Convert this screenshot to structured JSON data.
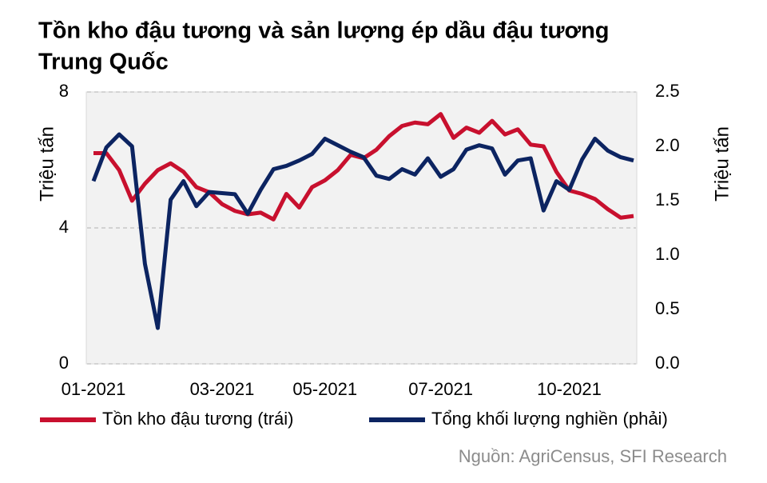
{
  "chart_data": {
    "type": "line",
    "title": "Tồn kho đậu tương và sản lượng ép dầu đậu tương",
    "subtitle": "Trung Quốc",
    "ylabel": "Triệu tấn",
    "y2label": "Triệu tấn",
    "source": "Nguồn:  AgriCensus,  SFI Research",
    "categories": [
      "01-2021",
      null,
      null,
      null,
      null,
      null,
      null,
      null,
      null,
      null,
      "03-2021",
      null,
      null,
      null,
      null,
      null,
      null,
      null,
      "05-2021",
      null,
      null,
      null,
      null,
      null,
      null,
      null,
      null,
      "07-2021",
      null,
      null,
      null,
      null,
      null,
      null,
      null,
      null,
      null,
      "10-2021",
      null,
      null,
      null,
      null,
      null
    ],
    "ylim": [
      0,
      8
    ],
    "yticks": [
      0,
      4,
      8
    ],
    "y2lim": [
      0,
      2.5
    ],
    "y2ticks": [
      {
        "value": 0,
        "label": "0.0"
      },
      0.5,
      {
        "value": 1,
        "label": "1.0"
      },
      1.5,
      {
        "value": 2,
        "label": "2.0"
      },
      2.5
    ],
    "grid": true,
    "series": [
      {
        "name": "Tồn kho đậu tương (trái)",
        "color": "#c8102e",
        "axis": "y",
        "values": [
          6.2,
          6.2,
          5.7,
          4.8,
          5.3,
          5.7,
          5.9,
          5.65,
          5.2,
          5.05,
          4.7,
          4.5,
          4.4,
          4.45,
          4.25,
          5.0,
          4.6,
          5.2,
          5.4,
          5.7,
          6.15,
          6.05,
          6.3,
          6.7,
          7.0,
          7.1,
          7.05,
          7.35,
          6.65,
          6.95,
          6.8,
          7.15,
          6.75,
          6.9,
          6.45,
          6.4,
          5.65,
          5.1,
          5.0,
          4.85,
          4.55,
          4.3,
          4.35
        ]
      },
      {
        "name": "Tổng khối lượng nghiền (phải)",
        "color": "#0c2461",
        "axis": "y2",
        "values": [
          1.68,
          1.99,
          2.11,
          2.0,
          0.92,
          0.33,
          1.51,
          1.68,
          1.45,
          1.58,
          1.57,
          1.56,
          1.38,
          1.6,
          1.79,
          1.82,
          1.87,
          1.93,
          2.07,
          2.01,
          1.95,
          1.9,
          1.73,
          1.7,
          1.79,
          1.74,
          1.89,
          1.72,
          1.79,
          1.97,
          2.01,
          1.98,
          1.74,
          1.87,
          1.89,
          1.41,
          1.68,
          1.6,
          1.88,
          2.07,
          1.96,
          1.9,
          1.87
        ]
      }
    ]
  }
}
